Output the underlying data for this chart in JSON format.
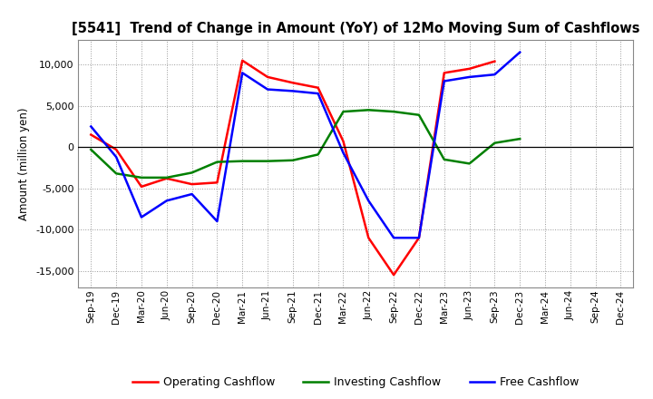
{
  "title": "[5541]  Trend of Change in Amount (YoY) of 12Mo Moving Sum of Cashflows",
  "ylabel": "Amount (million yen)",
  "x_labels": [
    "Sep-19",
    "Dec-19",
    "Mar-20",
    "Jun-20",
    "Sep-20",
    "Dec-20",
    "Mar-21",
    "Jun-21",
    "Sep-21",
    "Dec-21",
    "Mar-22",
    "Jun-22",
    "Sep-22",
    "Dec-22",
    "Mar-23",
    "Jun-23",
    "Sep-23",
    "Dec-23",
    "Mar-24",
    "Jun-24",
    "Sep-24",
    "Dec-24"
  ],
  "operating": [
    1500,
    -300,
    -4800,
    -3800,
    -4500,
    -4300,
    10500,
    8500,
    7800,
    7200,
    700,
    -11000,
    -15500,
    -11000,
    9000,
    9500,
    10400,
    null,
    null,
    null,
    null,
    null
  ],
  "investing": [
    -300,
    -3200,
    -3700,
    -3700,
    -3100,
    -1800,
    -1700,
    -1700,
    -1600,
    -900,
    4300,
    4500,
    4300,
    3900,
    -1500,
    -2000,
    500,
    1000,
    null,
    null,
    null,
    null
  ],
  "free": [
    2500,
    -1200,
    -8500,
    -6500,
    -5700,
    -9000,
    9000,
    7000,
    6800,
    6500,
    -700,
    -6500,
    -11000,
    -11000,
    8000,
    8500,
    8800,
    11500,
    null,
    null,
    null,
    null
  ],
  "operating_color": "#ff0000",
  "investing_color": "#008000",
  "free_color": "#0000ff",
  "ylim": [
    -17000,
    13000
  ],
  "yticks": [
    -15000,
    -10000,
    -5000,
    0,
    5000,
    10000
  ],
  "background_color": "#ffffff"
}
